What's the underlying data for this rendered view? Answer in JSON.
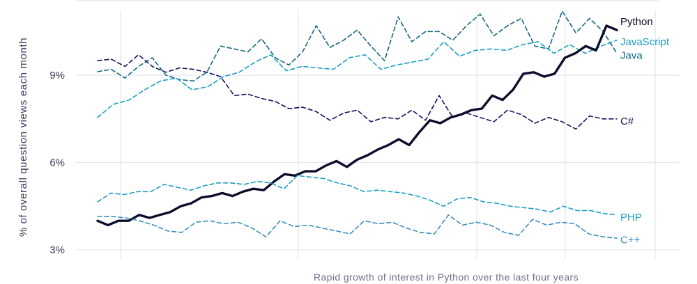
{
  "chart_data": {
    "type": "line",
    "title": "",
    "xlabel": "Rapid growth of interest in Python over the last four years",
    "ylabel": "% of overall question views each month",
    "ylim": [
      3,
      11.5
    ],
    "yticks": [
      3,
      6,
      9
    ],
    "ytick_labels": [
      "3%",
      "6%",
      "9%"
    ],
    "grid": true,
    "legend": "inline-right",
    "series": [
      {
        "name": "Java",
        "color": "#136780",
        "style": "dashed",
        "values": [
          9.12,
          9.2,
          8.9,
          9.3,
          9.6,
          9.0,
          8.85,
          8.8,
          9.1,
          10.0,
          9.9,
          9.8,
          10.25,
          9.6,
          9.35,
          9.8,
          10.7,
          9.95,
          10.2,
          10.55,
          10.0,
          9.5,
          11.0,
          10.15,
          10.5,
          10.5,
          10.2,
          10.7,
          11.1,
          10.35,
          10.7,
          10.95,
          10.0,
          9.9,
          11.2,
          10.45,
          10.95,
          10.5,
          9.75
        ]
      },
      {
        "name": "JavaScript",
        "color": "#1a9fc0",
        "style": "dashed",
        "values": [
          7.55,
          8.0,
          8.15,
          8.5,
          8.8,
          8.9,
          8.5,
          8.6,
          8.95,
          9.1,
          9.45,
          9.7,
          9.15,
          9.3,
          9.25,
          9.2,
          9.6,
          9.7,
          9.2,
          9.35,
          9.45,
          9.55,
          10.15,
          9.65,
          9.85,
          9.9,
          9.85,
          10.05,
          10.15,
          9.75,
          10.05,
          9.75,
          10.0,
          10.2
        ]
      },
      {
        "name": "C#",
        "color": "#13135e",
        "style": "dashed",
        "values": [
          9.5,
          9.55,
          9.3,
          9.7,
          9.3,
          9.1,
          9.25,
          9.2,
          9.1,
          8.95,
          8.3,
          8.35,
          8.2,
          8.1,
          7.85,
          7.9,
          7.75,
          7.45,
          7.7,
          7.8,
          7.4,
          7.55,
          7.5,
          7.8,
          7.45,
          8.3,
          7.55,
          7.7,
          7.55,
          7.4,
          7.8,
          7.65,
          7.35,
          7.55,
          7.4,
          7.15,
          7.6,
          7.5,
          7.5
        ]
      },
      {
        "name": "Python",
        "color": "#0c0c2c",
        "style": "solid",
        "values": [
          4.0,
          3.85,
          4.0,
          4.0,
          4.2,
          4.1,
          4.2,
          4.3,
          4.5,
          4.6,
          4.8,
          4.85,
          4.95,
          4.85,
          5.0,
          5.1,
          5.05,
          5.35,
          5.6,
          5.55,
          5.7,
          5.7,
          5.9,
          6.05,
          5.85,
          6.1,
          6.25,
          6.45,
          6.6,
          6.8,
          6.6,
          7.05,
          7.45,
          7.35,
          7.55,
          7.65,
          7.8,
          7.85,
          8.3,
          8.15,
          8.5,
          9.05,
          9.1,
          8.95,
          9.05,
          9.6,
          9.75,
          10.0,
          9.85,
          10.7,
          10.55
        ]
      },
      {
        "name": "PHP",
        "color": "#1a9fc0",
        "style": "dashed",
        "values": [
          4.65,
          4.95,
          4.9,
          5.0,
          5.0,
          5.25,
          5.15,
          5.05,
          5.2,
          5.3,
          5.3,
          5.25,
          5.35,
          5.3,
          5.1,
          5.55,
          5.5,
          5.45,
          5.3,
          5.2,
          5.0,
          5.05,
          5.0,
          4.95,
          4.85,
          4.7,
          4.5,
          4.75,
          4.8,
          4.65,
          4.6,
          4.5,
          4.45,
          4.4,
          4.3,
          4.5,
          4.35,
          4.35,
          4.25,
          4.2
        ]
      },
      {
        "name": "C++",
        "color": "#3a8fbf",
        "style": "dashed",
        "values": [
          4.15,
          4.15,
          4.1,
          4.0,
          3.85,
          3.65,
          3.6,
          3.95,
          4.0,
          3.9,
          3.95,
          3.75,
          3.45,
          4.0,
          3.8,
          3.85,
          3.75,
          3.65,
          3.55,
          4.0,
          3.9,
          3.95,
          3.75,
          3.6,
          3.55,
          4.2,
          3.85,
          3.95,
          3.85,
          3.6,
          3.5,
          4.05,
          3.85,
          3.95,
          3.9,
          3.55,
          3.45,
          3.4
        ]
      }
    ]
  }
}
